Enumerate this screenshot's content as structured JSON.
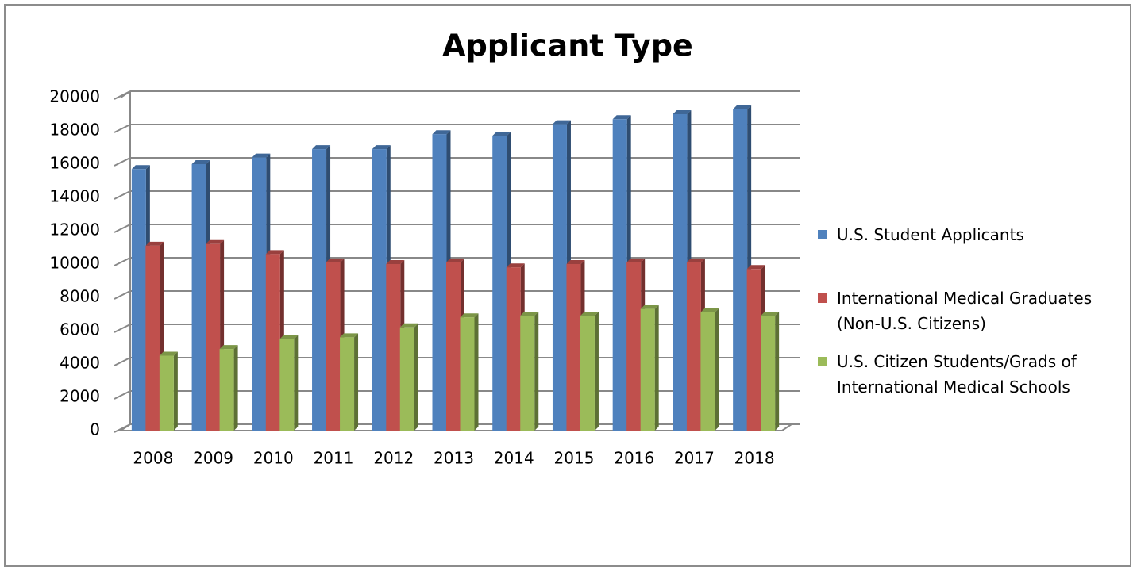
{
  "chart_data": {
    "type": "bar",
    "title": "Applicant Type",
    "categories": [
      "2008",
      "2009",
      "2010",
      "2011",
      "2012",
      "2013",
      "2014",
      "2015",
      "2016",
      "2017",
      "2018"
    ],
    "series": [
      {
        "name": "U.S. Student Applicants",
        "color": "#4f81bd",
        "values": [
          15700,
          16000,
          16400,
          16900,
          16900,
          17800,
          17700,
          18400,
          18700,
          19000,
          19300
        ]
      },
      {
        "name": "International Medical Graduates (Non-U.S. Citizens)",
        "color": "#c0504d",
        "values": [
          11100,
          11200,
          10600,
          10100,
          10000,
          10100,
          9800,
          10000,
          10100,
          10100,
          9700
        ]
      },
      {
        "name": "U.S. Citizen Students/Grads of International Medical Schools",
        "color": "#9bbb59",
        "values": [
          4500,
          4900,
          5500,
          5600,
          6200,
          6800,
          6900,
          6900,
          7300,
          7100,
          6900
        ]
      }
    ],
    "ylim": [
      0,
      20000
    ],
    "yticks": [
      0,
      2000,
      4000,
      6000,
      8000,
      10000,
      12000,
      14000,
      16000,
      18000,
      20000
    ],
    "grid": true,
    "legend": "right"
  }
}
